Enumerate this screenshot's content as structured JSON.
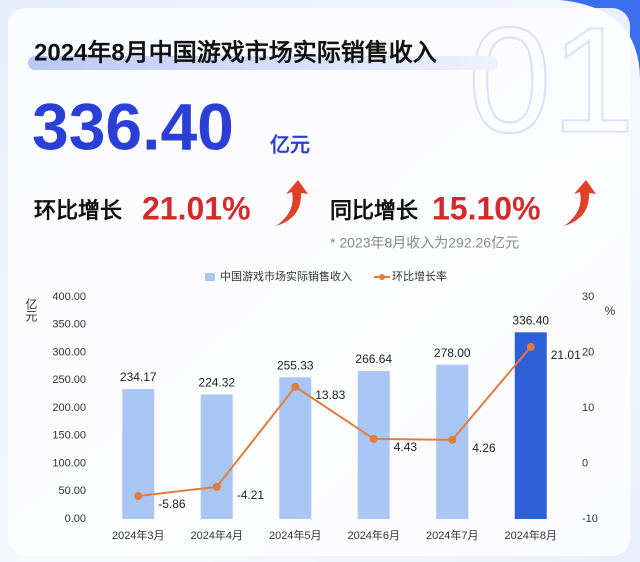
{
  "header": {
    "title": "2024年8月中国游戏市场实际销售收入",
    "big_number": "336.40",
    "unit": "亿元",
    "watermark": "01",
    "mom_label": "环比增长",
    "mom_value": "21.01%",
    "yoy_label": "同比增长",
    "yoy_value": "15.10%",
    "note": "* 2023年8月收入为292.26亿元"
  },
  "chart_data": {
    "type": "bar",
    "categories": [
      "2024年3月",
      "2024年4月",
      "2024年5月",
      "2024年6月",
      "2024年7月",
      "2024年8月"
    ],
    "series": [
      {
        "name": "中国游戏市场实际销售收入",
        "type": "bar",
        "color": "#a9c6f5",
        "colors": [
          "#a9c6f5",
          "#a9c6f5",
          "#a9c6f5",
          "#a9c6f5",
          "#a9c6f5",
          "#2f5fd8"
        ],
        "values": [
          234.17,
          224.32,
          255.33,
          266.64,
          278.0,
          336.4
        ],
        "value_labels": [
          "234.17",
          "224.32",
          "255.33",
          "266.64",
          "278.00",
          "336.40"
        ]
      },
      {
        "name": "环比增长率",
        "type": "line",
        "axis": "y2",
        "color": "#e07d3c",
        "values": [
          -5.86,
          -4.21,
          13.83,
          4.43,
          4.26,
          21.01
        ]
      }
    ],
    "ylabel": "亿元",
    "y2label": "%",
    "ylim": [
      0,
      400
    ],
    "yticks": [
      {
        "value": 0,
        "label": "0.00"
      },
      {
        "value": 50,
        "label": "50.00"
      },
      {
        "value": 100,
        "label": "100.00"
      },
      {
        "value": 150,
        "label": "150.00"
      },
      {
        "value": 200,
        "label": "200.00"
      },
      {
        "value": 250,
        "label": "250.00"
      },
      {
        "value": 300,
        "label": "300.00"
      },
      {
        "value": 350,
        "label": "350.00"
      },
      {
        "value": 400,
        "label": "400.00"
      }
    ],
    "y2lim": [
      -10,
      30
    ],
    "y2ticks": [
      -10,
      0,
      10,
      20,
      30
    ]
  }
}
